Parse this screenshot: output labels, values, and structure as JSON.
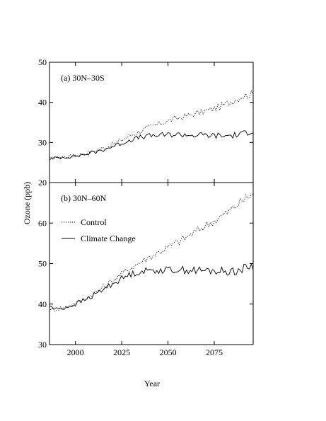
{
  "chart_data": {
    "type": "line",
    "xlabel": "Year",
    "ylabel": "Ozone (ppb)",
    "xlim": [
      1986,
      2096
    ],
    "x_ticks": [
      "2000",
      "2025",
      "2050",
      "2075"
    ],
    "x_tick_values": [
      2000,
      2025,
      2050,
      2075
    ],
    "legend": {
      "placement": "left, inside lower panel",
      "entries": [
        {
          "label": "Control",
          "style": "dotted"
        },
        {
          "label": "Climate Change",
          "style": "solid"
        }
      ]
    },
    "panels": [
      {
        "label": "(a) 30N–30S",
        "ylim": [
          20,
          50
        ],
        "y_ticks": [
          "20",
          "30",
          "40",
          "50"
        ],
        "y_tick_values": [
          20,
          30,
          40,
          50
        ],
        "series": [
          {
            "name": "Control",
            "style": "dotted",
            "x": [
              1986,
              1990,
              1995,
              2000,
              2005,
              2010,
              2015,
              2020,
              2025,
              2030,
              2035,
              2040,
              2045,
              2050,
              2055,
              2060,
              2065,
              2070,
              2075,
              2080,
              2085,
              2090,
              2095
            ],
            "y": [
              26.0,
              26.2,
              26.5,
              26.8,
              27.3,
              27.8,
              28.6,
              29.5,
              30.6,
              31.8,
              32.8,
              33.8,
              34.6,
              35.4,
              36.0,
              36.6,
              37.2,
              37.8,
              38.4,
              39.3,
              40.4,
              41.5,
              42.0
            ]
          },
          {
            "name": "Climate Change",
            "style": "solid",
            "x": [
              1986,
              1990,
              1995,
              2000,
              2005,
              2010,
              2015,
              2020,
              2025,
              2030,
              2035,
              2040,
              2045,
              2050,
              2055,
              2060,
              2065,
              2070,
              2075,
              2080,
              2085,
              2090,
              2095
            ],
            "y": [
              25.8,
              26.2,
              26.4,
              26.6,
              27.0,
              27.5,
              28.2,
              29.0,
              29.8,
              30.7,
              31.3,
              31.6,
              31.8,
              31.9,
              32.0,
              31.9,
              31.8,
              31.8,
              31.7,
              31.6,
              31.8,
              32.0,
              33.0
            ]
          }
        ]
      },
      {
        "label": "(b) 30N–60N",
        "ylim": [
          30,
          70
        ],
        "y_ticks": [
          "30",
          "40",
          "50",
          "60"
        ],
        "y_tick_values": [
          30,
          40,
          50,
          60
        ],
        "series": [
          {
            "name": "Control",
            "style": "dotted",
            "x": [
              1986,
              1990,
              1995,
              2000,
              2005,
              2010,
              2015,
              2020,
              2025,
              2030,
              2035,
              2040,
              2045,
              2050,
              2055,
              2060,
              2065,
              2070,
              2075,
              2080,
              2085,
              2090,
              2095
            ],
            "y": [
              38.5,
              38.8,
              39.3,
              40.2,
              41.3,
              42.6,
              44.2,
              45.8,
              47.5,
              49.0,
              50.3,
              51.6,
              52.8,
              54.0,
              55.2,
              56.5,
              57.9,
              59.3,
              60.6,
              62.0,
              63.6,
              65.5,
              67.0
            ]
          },
          {
            "name": "Climate Change",
            "style": "solid",
            "x": [
              1986,
              1990,
              1995,
              2000,
              2005,
              2010,
              2015,
              2020,
              2025,
              2030,
              2035,
              2040,
              2045,
              2050,
              2055,
              2060,
              2065,
              2070,
              2075,
              2080,
              2085,
              2090,
              2095
            ],
            "y": [
              39.5,
              38.7,
              39.2,
              40.0,
              41.0,
              42.2,
              43.6,
              45.0,
              46.3,
              47.4,
              48.0,
              48.3,
              48.4,
              48.4,
              48.5,
              48.4,
              48.3,
              48.2,
              48.2,
              48.0,
              48.2,
              48.5,
              49.5
            ]
          }
        ]
      }
    ]
  }
}
